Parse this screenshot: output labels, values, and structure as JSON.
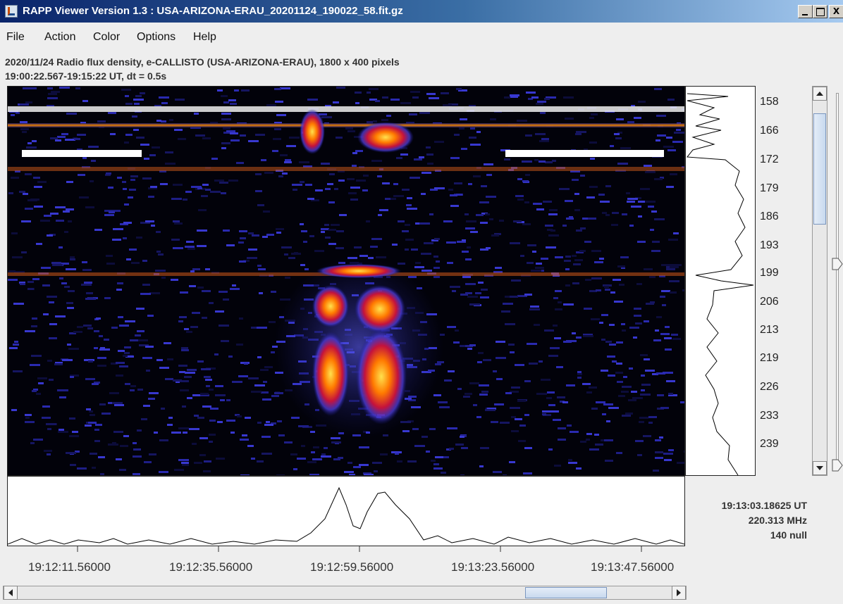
{
  "window": {
    "title": "RAPP Viewer Version 1.3 : USA-ARIZONA-ERAU_20201124_190022_58.fit.gz",
    "app_icon": "java-cup-icon",
    "controls": [
      "minimize-icon",
      "maximize-icon",
      "close-icon"
    ],
    "close_glyph": "X"
  },
  "menu": [
    "File",
    "Action",
    "Color",
    "Options",
    "Help"
  ],
  "info": {
    "line1": "2020/11/24  Radio flux density, e-CALLISTO (USA-ARIZONA-ERAU),  1800 x 400 pixels",
    "line2": "19:00:22.567-19:15:22 UT,  dt = 0.5s"
  },
  "frequency_axis": {
    "unit": "MHz",
    "labels": [
      "158",
      "166",
      "172",
      "179",
      "186",
      "193",
      "199",
      "206",
      "213",
      "219",
      "226",
      "233",
      "239"
    ]
  },
  "time_axis": {
    "labels": [
      "19:12:11.56000",
      "19:12:35.56000",
      "19:12:59.56000",
      "19:13:23.56000",
      "19:13:47.56000"
    ]
  },
  "cursor_readout": {
    "time": "19:13:03.18625 UT",
    "frequency": "220.313 MHz",
    "value": "140 null"
  },
  "colors": {
    "title_bar_start": "#0a246a",
    "title_bar_end": "#a6caf0",
    "spectrogram_background": "#02020a",
    "colormap": [
      "#02020a",
      "#1a1a8c",
      "#3a3ad8",
      "#c02040",
      "#ff6a00",
      "#ffd700",
      "#ffffff"
    ]
  },
  "scrollbars": {
    "vertical_position": 0.25,
    "horizontal_position": 0.8
  }
}
